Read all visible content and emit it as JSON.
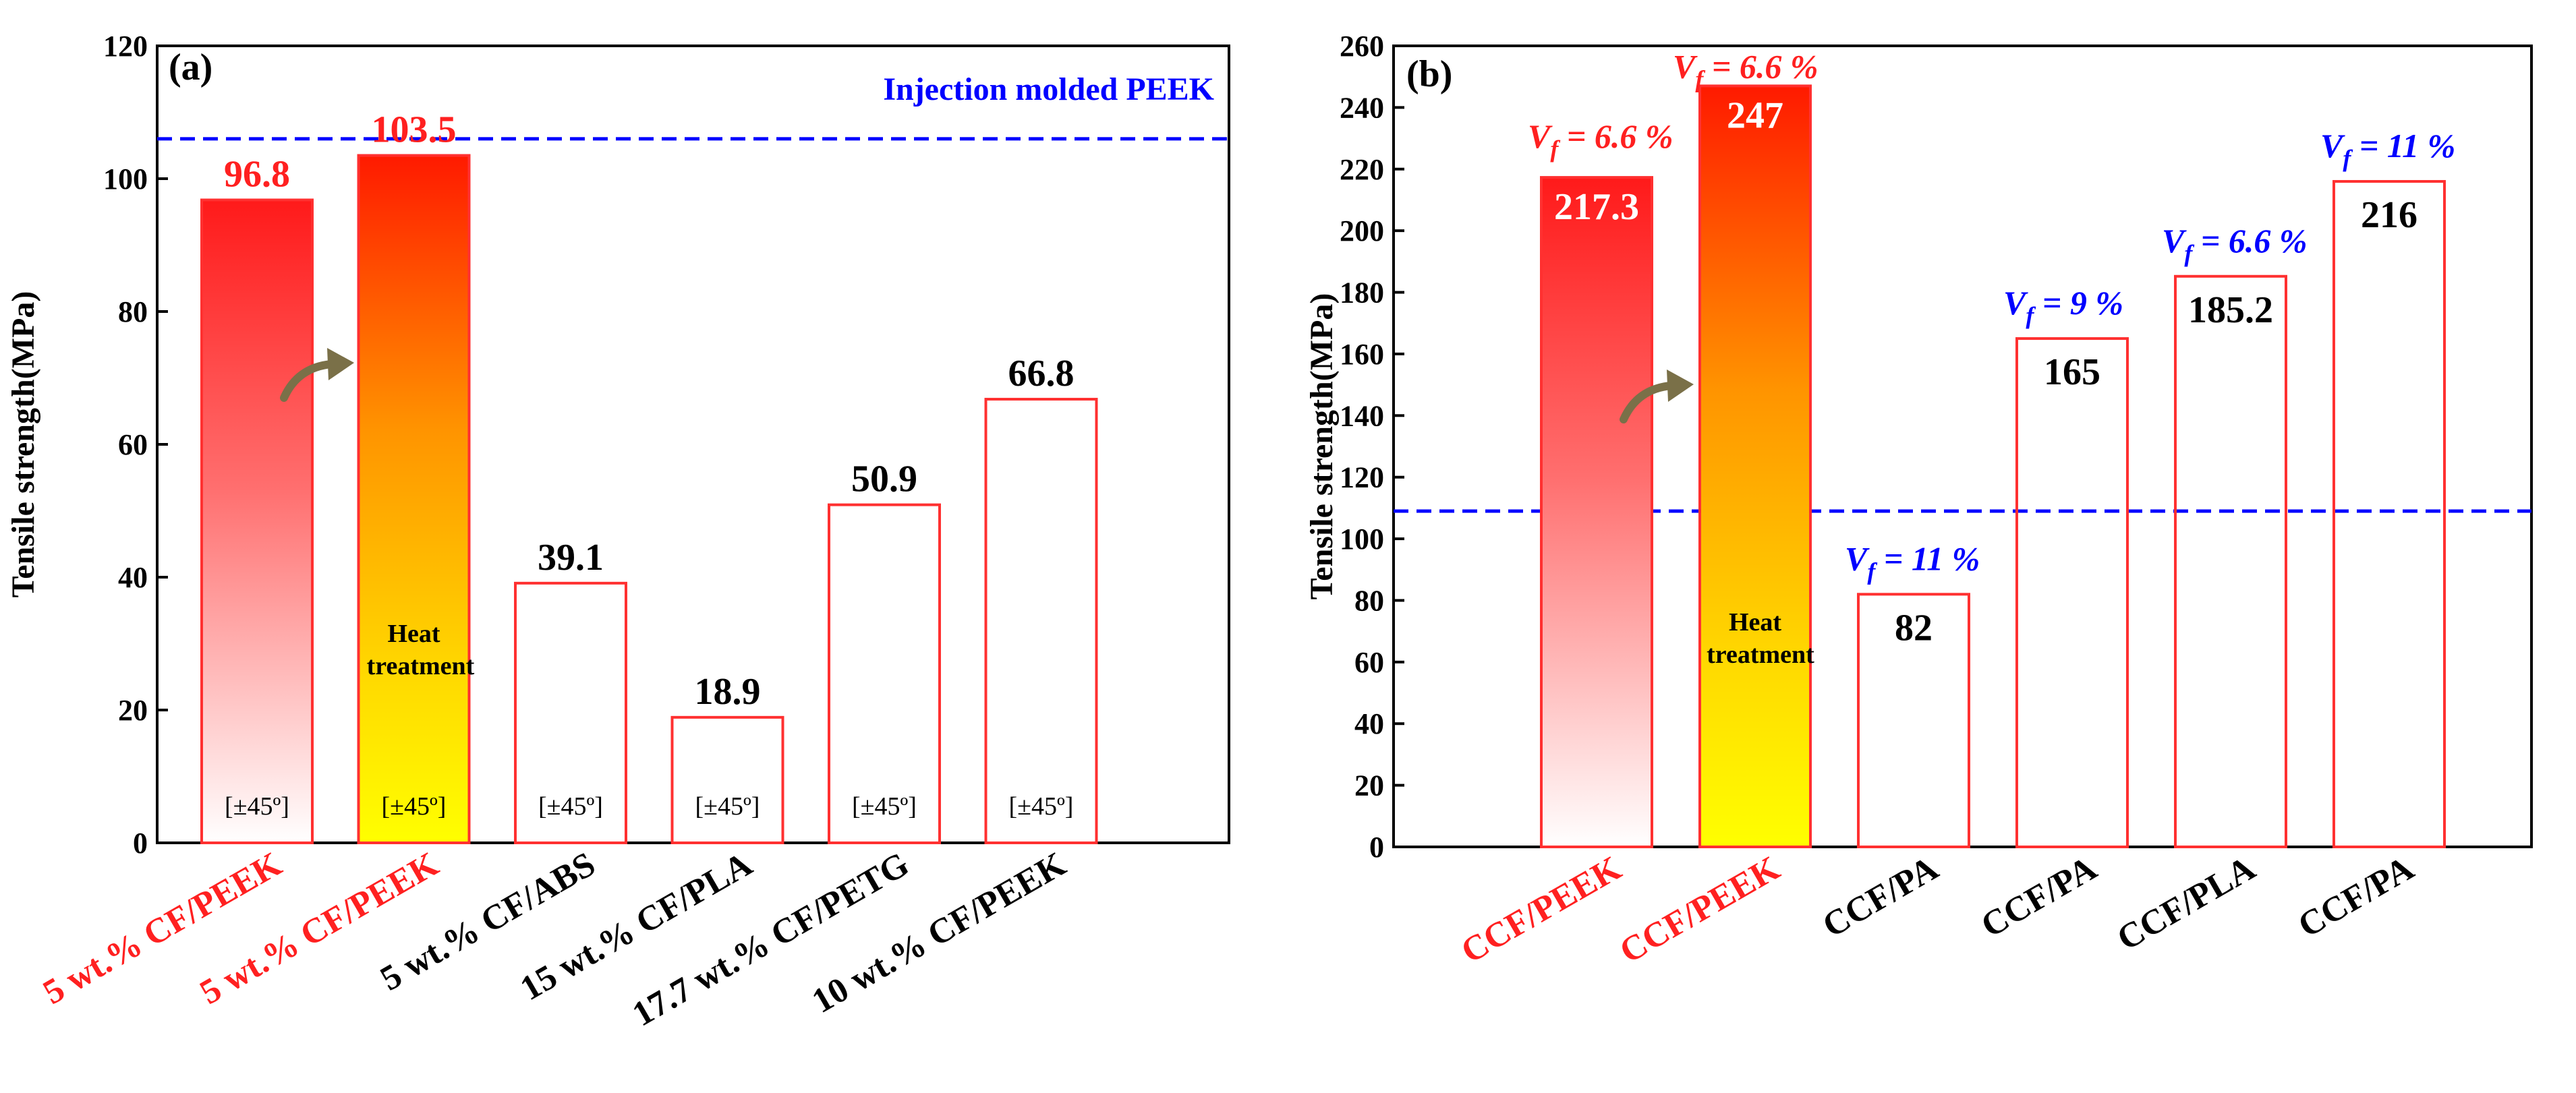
{
  "colors": {
    "highlight": "#ff2020",
    "normal": "#000000",
    "vf_blue": "#0000ff",
    "vf_red": "#ff2020",
    "bar_border": "#ff3030",
    "ref_line": "#0000ff",
    "arrow": "#7a7048"
  },
  "chart_data": [
    {
      "panel": "(a)",
      "type": "bar",
      "ylabel": "Tensile strength(MPa)",
      "ylim": [
        0,
        120
      ],
      "yticks": [
        0,
        20,
        40,
        60,
        80,
        100,
        120
      ],
      "reference_line": {
        "value": 106,
        "label": "Injection molded PEEK"
      },
      "bars": [
        {
          "category": "5 wt.% CF/PEEK",
          "value": 96.8,
          "label": "96.8",
          "fill": "red-gradient",
          "highlight": true,
          "orientation": "[±45º]"
        },
        {
          "category": "5 wt.% CF/PEEK",
          "value": 103.5,
          "label": "103.5",
          "fill": "heat-gradient",
          "highlight": true,
          "orientation": "[±45º]",
          "note": "Heat treatment"
        },
        {
          "category": "5 wt.% CF/ABS",
          "value": 39.1,
          "label": "39.1",
          "fill": "none",
          "highlight": false,
          "orientation": "[±45º]"
        },
        {
          "category": "15 wt.% CF/PLA",
          "value": 18.9,
          "label": "18.9",
          "fill": "none",
          "highlight": false,
          "orientation": "[±45º]"
        },
        {
          "category": "17.7 wt.% CF/PETG",
          "value": 50.9,
          "label": "50.9",
          "fill": "none",
          "highlight": false,
          "orientation": "[±45º]"
        },
        {
          "category": "10 wt.% CF/PEEK",
          "value": 66.8,
          "label": "66.8",
          "fill": "none",
          "highlight": false,
          "orientation": "[±45º]"
        }
      ]
    },
    {
      "panel": "(b)",
      "type": "bar",
      "ylabel": "Tensile strength(MPa)",
      "ylim": [
        0,
        260
      ],
      "yticks": [
        0,
        20,
        40,
        60,
        80,
        100,
        120,
        140,
        160,
        180,
        200,
        220,
        240,
        260
      ],
      "reference_line": {
        "value": 109,
        "label": ""
      },
      "bars": [
        {
          "category": "CCF/PEEK",
          "value": 217.3,
          "label": "217.3",
          "fill": "red-gradient",
          "highlight": true,
          "vf": "V",
          "vf_sub": "f",
          "vf_value": " = 6.6 %",
          "vf_color": "red"
        },
        {
          "category": "CCF/PEEK",
          "value": 247,
          "label": "247",
          "fill": "heat-gradient",
          "highlight": true,
          "vf": "V",
          "vf_sub": "f",
          "vf_value": " = 6.6 %",
          "vf_color": "red",
          "note": "Heat treatment"
        },
        {
          "category": "CCF/PA",
          "value": 82,
          "label": "82",
          "fill": "none",
          "highlight": false,
          "vf": "V",
          "vf_sub": "f",
          "vf_value": " = 11 %",
          "vf_color": "blue"
        },
        {
          "category": "CCF/PA",
          "value": 165,
          "label": "165",
          "fill": "none",
          "highlight": false,
          "vf": "V",
          "vf_sub": "f",
          "vf_value": " = 9 %",
          "vf_color": "blue"
        },
        {
          "category": "CCF/PLA",
          "value": 185.2,
          "label": "185.2",
          "fill": "none",
          "highlight": false,
          "vf": "V",
          "vf_sub": "f",
          "vf_value": " = 6.6 %",
          "vf_color": "blue"
        },
        {
          "category": "CCF/PA",
          "value": 216,
          "label": "216",
          "fill": "none",
          "highlight": false,
          "vf": "V",
          "vf_sub": "f",
          "vf_value": " = 11 %",
          "vf_color": "blue"
        }
      ]
    }
  ],
  "heat_treatment_label": [
    "Heat",
    "treatment"
  ]
}
